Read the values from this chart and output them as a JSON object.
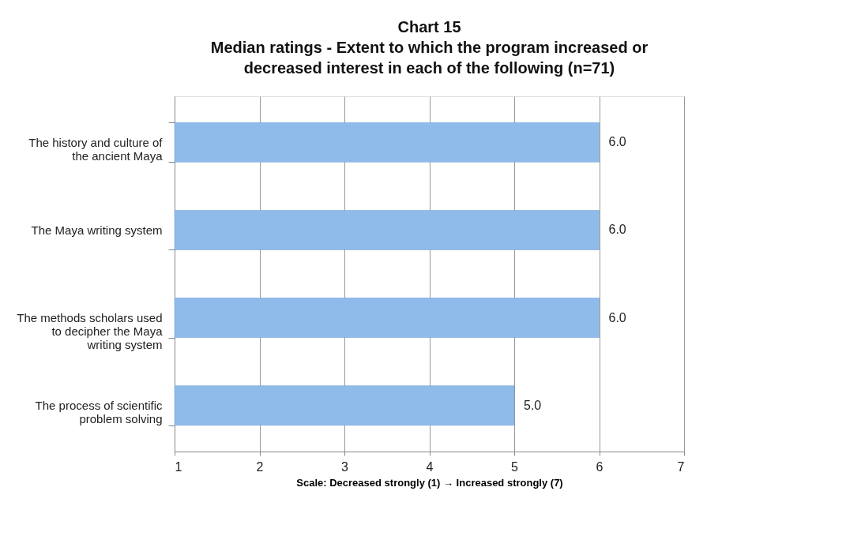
{
  "chart_data": {
    "type": "bar",
    "orientation": "horizontal",
    "title": "Chart 15",
    "subtitle": "Median ratings - Extent to which the program increased or decreased interest in each of the following (n=71)",
    "xlabel": "Scale: Decreased strongly (1) → Increased strongly (7)",
    "categories": [
      "The history and culture of the ancient Maya",
      "The Maya writing system",
      "The methods scholars used to decipher the Maya writing system",
      "The process of scientific problem solving"
    ],
    "values": [
      6.0,
      6.0,
      6.0,
      5.0
    ],
    "value_labels": [
      "6.0",
      "6.0",
      "6.0",
      "5.0"
    ],
    "color": "#8fbbea",
    "xlim": [
      1,
      7
    ],
    "xticks": [
      1,
      2,
      3,
      4,
      5,
      6,
      7
    ],
    "grid": "x"
  }
}
